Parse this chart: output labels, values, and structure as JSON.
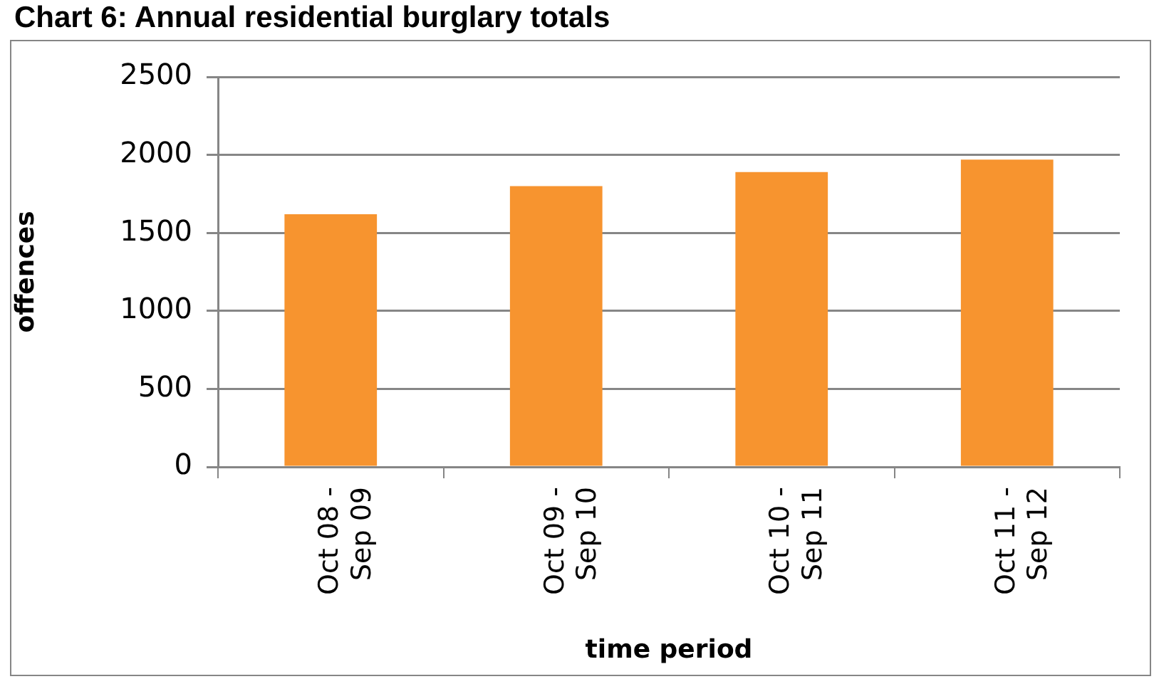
{
  "chart_data": {
    "type": "bar",
    "title": "Chart 6: Annual residential burglary totals",
    "xlabel": "time period",
    "ylabel": "offences",
    "categories": [
      "Oct 08 - Sep 09",
      "Oct 09 - Sep 10",
      "Oct 10 - Sep 11",
      "Oct 11 - Sep 12"
    ],
    "values": [
      1620,
      1800,
      1890,
      1970
    ],
    "color": "#f7942f",
    "ylim": [
      0,
      2500
    ],
    "yticks": [
      0,
      500,
      1000,
      1500,
      2000,
      2500
    ],
    "grid": "y"
  }
}
